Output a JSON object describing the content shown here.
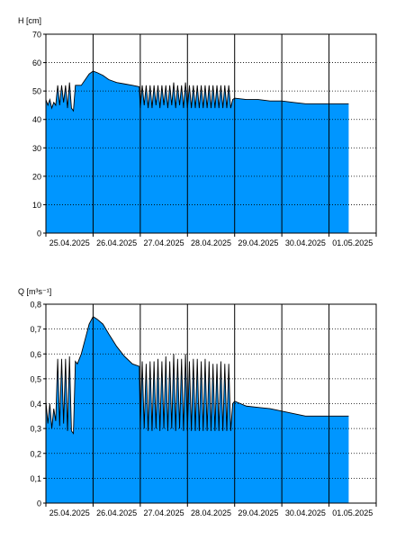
{
  "chart_data": [
    {
      "type": "area",
      "ylabel": "H [cm]",
      "ylim": [
        0,
        70
      ],
      "yticks": [
        "0",
        "10",
        "20",
        "30",
        "40",
        "50",
        "60",
        "70"
      ],
      "x_labels": [
        "25.04.2025",
        "26.04.2025",
        "27.04.2025",
        "28.04.2025",
        "29.04.2025",
        "30.04.2025",
        "01.05.2025"
      ],
      "xlim": [
        "2025-04-25T00:00",
        "2025-05-02T00:00"
      ],
      "grid": true,
      "fill_color": "#0096ff",
      "x": [
        "2025-04-25T00:00",
        "2025-04-25T01:00",
        "2025-04-25T02:00",
        "2025-04-25T03:00",
        "2025-04-25T04:00",
        "2025-04-25T05:00",
        "2025-04-25T06:00",
        "2025-04-25T07:00",
        "2025-04-25T08:00",
        "2025-04-25T09:00",
        "2025-04-25T10:00",
        "2025-04-25T11:00",
        "2025-04-25T12:00",
        "2025-04-25T13:00",
        "2025-04-25T14:00",
        "2025-04-25T15:00",
        "2025-04-25T16:00",
        "2025-04-25T18:00",
        "2025-04-25T20:00",
        "2025-04-25T22:00",
        "2025-04-26T00:00",
        "2025-04-26T02:00",
        "2025-04-26T05:00",
        "2025-04-26T08:00",
        "2025-04-26T12:00",
        "2025-04-26T16:00",
        "2025-04-26T20:00",
        "2025-04-26T23:30",
        "2025-04-27T00:00",
        "2025-04-27T01:00",
        "2025-04-27T02:00",
        "2025-04-27T03:00",
        "2025-04-27T04:00",
        "2025-04-27T05:00",
        "2025-04-27T06:00",
        "2025-04-27T07:00",
        "2025-04-27T08:00",
        "2025-04-27T09:00",
        "2025-04-27T10:00",
        "2025-04-27T11:00",
        "2025-04-27T12:00",
        "2025-04-27T13:00",
        "2025-04-27T14:00",
        "2025-04-27T15:00",
        "2025-04-27T16:00",
        "2025-04-27T17:00",
        "2025-04-27T18:00",
        "2025-04-27T19:00",
        "2025-04-27T20:00",
        "2025-04-27T21:00",
        "2025-04-27T22:00",
        "2025-04-27T23:00",
        "2025-04-28T00:00",
        "2025-04-28T01:00",
        "2025-04-28T02:00",
        "2025-04-28T03:00",
        "2025-04-28T04:00",
        "2025-04-28T05:00",
        "2025-04-28T06:00",
        "2025-04-28T07:00",
        "2025-04-28T08:00",
        "2025-04-28T09:00",
        "2025-04-28T10:00",
        "2025-04-28T11:00",
        "2025-04-28T12:00",
        "2025-04-28T13:00",
        "2025-04-28T14:00",
        "2025-04-28T15:00",
        "2025-04-28T16:00",
        "2025-04-28T17:00",
        "2025-04-28T18:00",
        "2025-04-28T19:00",
        "2025-04-28T20:00",
        "2025-04-28T21:00",
        "2025-04-28T22:00",
        "2025-04-28T23:00",
        "2025-04-29T00:00",
        "2025-04-29T06:00",
        "2025-04-29T12:00",
        "2025-04-29T18:00",
        "2025-04-30T00:00",
        "2025-04-30T06:00",
        "2025-04-30T12:00",
        "2025-04-30T18:00",
        "2025-05-01T00:00",
        "2025-05-01T06:00",
        "2025-05-01T09:00",
        "2025-05-01T10:00"
      ],
      "values": [
        47,
        45,
        47,
        44,
        46,
        45,
        52,
        45,
        52,
        46,
        52,
        44,
        53,
        44,
        43,
        52,
        52,
        52,
        54,
        56,
        57,
        56.5,
        55.5,
        54,
        53,
        52.5,
        52,
        51.5,
        44,
        52,
        45,
        52,
        44,
        52,
        44,
        52,
        45,
        52,
        44,
        52,
        45,
        52,
        44,
        52,
        45,
        53,
        44,
        52,
        45,
        52,
        44,
        53,
        44,
        52,
        44,
        52,
        44,
        52,
        44,
        52,
        44,
        52,
        44,
        52,
        44,
        52,
        44,
        52,
        44,
        52,
        44,
        52,
        44,
        52,
        44,
        47,
        47.5,
        47,
        47,
        46.5,
        46.5,
        46,
        45.5,
        45.5,
        45.5,
        45.5,
        45.5,
        45.5
      ]
    },
    {
      "type": "area",
      "ylabel": "Q [m³s⁻¹]",
      "ylim": [
        0,
        0.8
      ],
      "yticks": [
        "0",
        "0,1",
        "0,2",
        "0,3",
        "0,4",
        "0,5",
        "0,6",
        "0,7",
        "0,8"
      ],
      "x_labels": [
        "25.04.2025",
        "26.04.2025",
        "27.04.2025",
        "28.04.2025",
        "29.04.2025",
        "30.04.2025",
        "01.05.2025"
      ],
      "xlim": [
        "2025-04-25T00:00",
        "2025-05-02T00:00"
      ],
      "grid": true,
      "fill_color": "#0096ff",
      "x": [
        "2025-04-25T00:00",
        "2025-04-25T01:00",
        "2025-04-25T02:00",
        "2025-04-25T03:00",
        "2025-04-25T04:00",
        "2025-04-25T05:00",
        "2025-04-25T06:00",
        "2025-04-25T07:00",
        "2025-04-25T08:00",
        "2025-04-25T09:00",
        "2025-04-25T10:00",
        "2025-04-25T11:00",
        "2025-04-25T12:00",
        "2025-04-25T13:00",
        "2025-04-25T14:00",
        "2025-04-25T15:00",
        "2025-04-25T16:00",
        "2025-04-25T18:00",
        "2025-04-25T20:00",
        "2025-04-25T22:00",
        "2025-04-26T00:00",
        "2025-04-26T02:00",
        "2025-04-26T05:00",
        "2025-04-26T08:00",
        "2025-04-26T12:00",
        "2025-04-26T16:00",
        "2025-04-26T20:00",
        "2025-04-26T23:30",
        "2025-04-27T00:00",
        "2025-04-27T01:00",
        "2025-04-27T02:00",
        "2025-04-27T03:00",
        "2025-04-27T04:00",
        "2025-04-27T05:00",
        "2025-04-27T06:00",
        "2025-04-27T07:00",
        "2025-04-27T08:00",
        "2025-04-27T09:00",
        "2025-04-27T10:00",
        "2025-04-27T11:00",
        "2025-04-27T12:00",
        "2025-04-27T13:00",
        "2025-04-27T14:00",
        "2025-04-27T15:00",
        "2025-04-27T16:00",
        "2025-04-27T17:00",
        "2025-04-27T18:00",
        "2025-04-27T19:00",
        "2025-04-27T20:00",
        "2025-04-27T21:00",
        "2025-04-27T22:00",
        "2025-04-27T23:00",
        "2025-04-28T00:00",
        "2025-04-28T01:00",
        "2025-04-28T02:00",
        "2025-04-28T03:00",
        "2025-04-28T04:00",
        "2025-04-28T05:00",
        "2025-04-28T06:00",
        "2025-04-28T07:00",
        "2025-04-28T08:00",
        "2025-04-28T09:00",
        "2025-04-28T10:00",
        "2025-04-28T11:00",
        "2025-04-28T12:00",
        "2025-04-28T13:00",
        "2025-04-28T14:00",
        "2025-04-28T15:00",
        "2025-04-28T16:00",
        "2025-04-28T17:00",
        "2025-04-28T18:00",
        "2025-04-28T19:00",
        "2025-04-28T20:00",
        "2025-04-28T21:00",
        "2025-04-28T22:00",
        "2025-04-28T23:00",
        "2025-04-29T00:00",
        "2025-04-29T06:00",
        "2025-04-29T12:00",
        "2025-04-29T18:00",
        "2025-04-30T00:00",
        "2025-04-30T06:00",
        "2025-04-30T12:00",
        "2025-04-30T18:00",
        "2025-05-01T00:00",
        "2025-05-01T06:00",
        "2025-05-01T09:00",
        "2025-05-01T10:00"
      ],
      "values": [
        0.41,
        0.32,
        0.4,
        0.3,
        0.38,
        0.33,
        0.58,
        0.31,
        0.58,
        0.32,
        0.58,
        0.29,
        0.59,
        0.29,
        0.28,
        0.57,
        0.56,
        0.6,
        0.66,
        0.72,
        0.75,
        0.74,
        0.72,
        0.68,
        0.63,
        0.59,
        0.56,
        0.55,
        0.3,
        0.57,
        0.3,
        0.56,
        0.29,
        0.57,
        0.29,
        0.57,
        0.3,
        0.58,
        0.29,
        0.57,
        0.3,
        0.59,
        0.29,
        0.57,
        0.3,
        0.6,
        0.29,
        0.58,
        0.3,
        0.58,
        0.29,
        0.6,
        0.29,
        0.57,
        0.29,
        0.58,
        0.29,
        0.58,
        0.29,
        0.57,
        0.29,
        0.58,
        0.29,
        0.57,
        0.29,
        0.56,
        0.29,
        0.56,
        0.29,
        0.57,
        0.29,
        0.56,
        0.29,
        0.56,
        0.29,
        0.4,
        0.41,
        0.39,
        0.385,
        0.38,
        0.37,
        0.36,
        0.35,
        0.35,
        0.35,
        0.35,
        0.35,
        0.35
      ]
    }
  ]
}
